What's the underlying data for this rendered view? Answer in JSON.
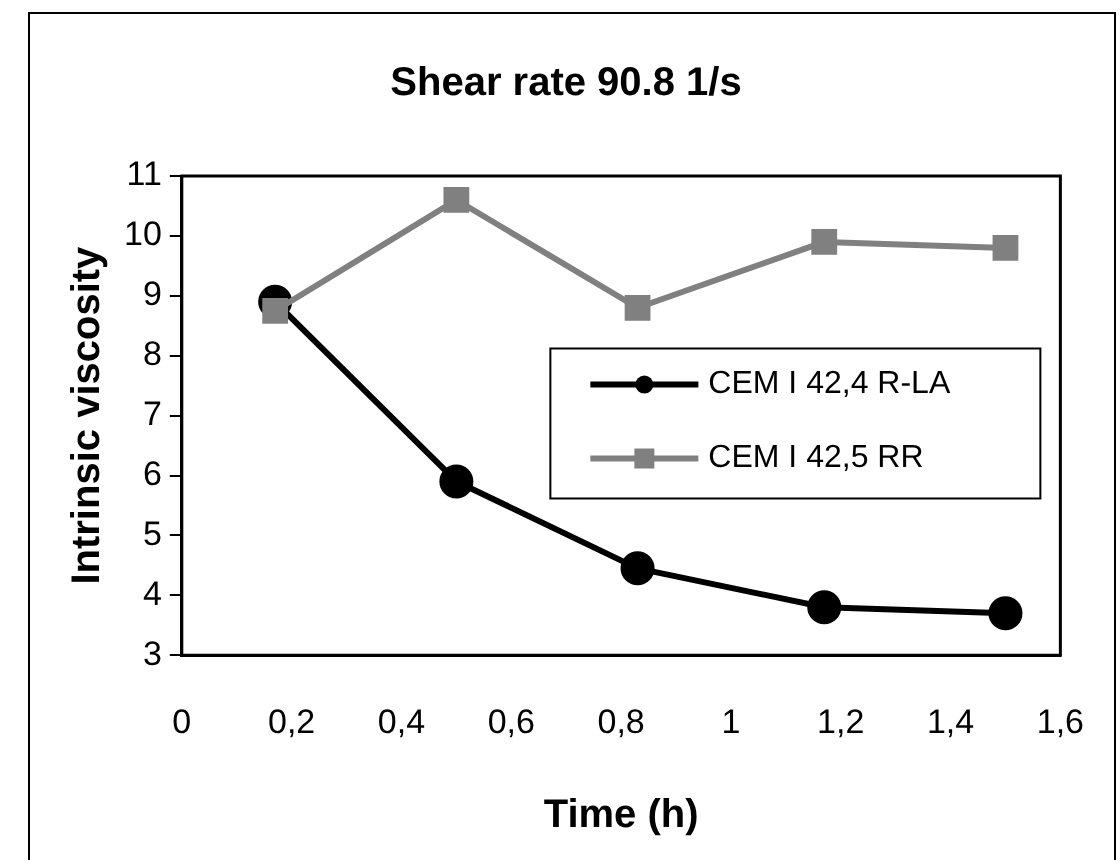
{
  "chart_data": {
    "type": "line",
    "title": "Shear rate 90.8 1/s",
    "xlabel": "Time (h)",
    "ylabel": "Intrinsic viscosity",
    "x": [
      0.17,
      0.5,
      0.83,
      1.17,
      1.5
    ],
    "series": [
      {
        "name": "CEM I 42,4 R-LA",
        "color": "#000000",
        "marker": "circle",
        "values": [
          8.9,
          5.9,
          4.45,
          3.8,
          3.7
        ]
      },
      {
        "name": "CEM I 42,5 RR",
        "color": "#808080",
        "marker": "square",
        "values": [
          8.75,
          10.6,
          8.8,
          9.9,
          9.8
        ]
      }
    ],
    "xlim": [
      0,
      1.6
    ],
    "xticks": [
      0,
      {
        "value": 0.2,
        "label": "0,2"
      },
      {
        "value": 0.4,
        "label": "0,4"
      },
      {
        "value": 0.6,
        "label": "0,6"
      },
      {
        "value": 0.8,
        "label": "0,8"
      },
      1,
      {
        "value": 1.2,
        "label": "1,2"
      },
      {
        "value": 1.4,
        "label": "1,4"
      },
      {
        "value": 1.6,
        "label": "1,6"
      }
    ],
    "ylim": [
      3,
      11
    ],
    "yticks": [
      3,
      4,
      5,
      6,
      7,
      8,
      9,
      10,
      11
    ],
    "grid": false,
    "legend": "right",
    "line_style": "solid"
  }
}
